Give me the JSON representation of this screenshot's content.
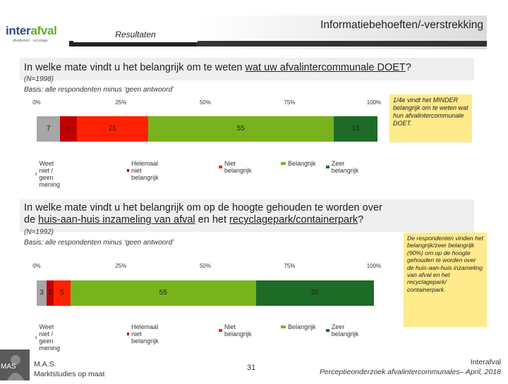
{
  "header": {
    "logo": {
      "name_a": "inter",
      "name_b": "afval",
      "tagline": "afvalbeleid · recyclage"
    },
    "section": "Resultaten",
    "title": "Informatiebehoeften/-verstrekking"
  },
  "colors": {
    "dont_know": "#a6a6a6",
    "not_important_at_all": "#c00000",
    "not_important": "#ff2200",
    "important": "#78b31e",
    "very_important": "#1e6b27",
    "note_bg": "#ffea8c"
  },
  "question1": {
    "text_before": "In welke mate vindt u het belangrijk om te weten ",
    "text_underlined": "wat uw afvalintercommunale DOET",
    "text_after": "?",
    "n": "(N=1998)",
    "basis": "Basis: alle respondenten minus ‘geen antwoord’",
    "note": "1/4e vindt het MINDER belangrijk om te weten wat hun afvalintercommunale DOET."
  },
  "question2": {
    "text_line1": "In welke mate vindt u het belangrijk om op de hoogte gehouden te worden over",
    "text_line2_before": "de ",
    "text_underlined1": "huis-aan-huis inzameling van afval",
    "text_mid": " en het ",
    "text_underlined2": "recyclagepark/containerpark",
    "text_after": "?",
    "n": "(N=1992)",
    "basis": "Basis: alle respondenten minus ‘geen antwoord’",
    "note": "De respondenten vinden het belangrijk/zeer belangrijk (90%) om op de hoogte gehouden te worden over de huis-aan-huis inzameling van afval en het recyclagepark/ containerpark."
  },
  "chart_data": [
    {
      "type": "bar",
      "orientation": "horizontal-stacked-100",
      "xlim": [
        0,
        100
      ],
      "ticks": [
        "0%",
        "25%",
        "50%",
        "75%",
        "100%"
      ],
      "series": [
        {
          "name": "Weet niet / geen mening",
          "values": [
            7
          ]
        },
        {
          "name": "Helemaal niet belangrijk",
          "values": [
            5
          ]
        },
        {
          "name": "Niet belangrijk",
          "values": [
            21
          ]
        },
        {
          "name": "Belangrijk",
          "values": [
            55
          ]
        },
        {
          "name": "Zeer belangrijk",
          "values": [
            13
          ]
        }
      ],
      "legend_position": "bottom"
    },
    {
      "type": "bar",
      "orientation": "horizontal-stacked-100",
      "xlim": [
        0,
        100
      ],
      "ticks": [
        "0%",
        "25%",
        "50%",
        "75%",
        "100%"
      ],
      "series": [
        {
          "name": "Weet niet / geen mening",
          "values": [
            3
          ]
        },
        {
          "name": "Helemaal niet belangrijk",
          "values": [
            2
          ]
        },
        {
          "name": "Niet belangrijk",
          "values": [
            5
          ]
        },
        {
          "name": "Belangrijk",
          "values": [
            55
          ]
        },
        {
          "name": "Zeer belangrijk",
          "values": [
            35
          ]
        }
      ],
      "legend_position": "bottom"
    }
  ],
  "footer": {
    "mas_logo": "MAS",
    "company_line1": "M.A.S.",
    "company_line2": "Marktstudies op maat",
    "page": "31",
    "client": "Interafval",
    "report": "Perceptieonderzoek afvalintercommunales– April, 2018"
  }
}
